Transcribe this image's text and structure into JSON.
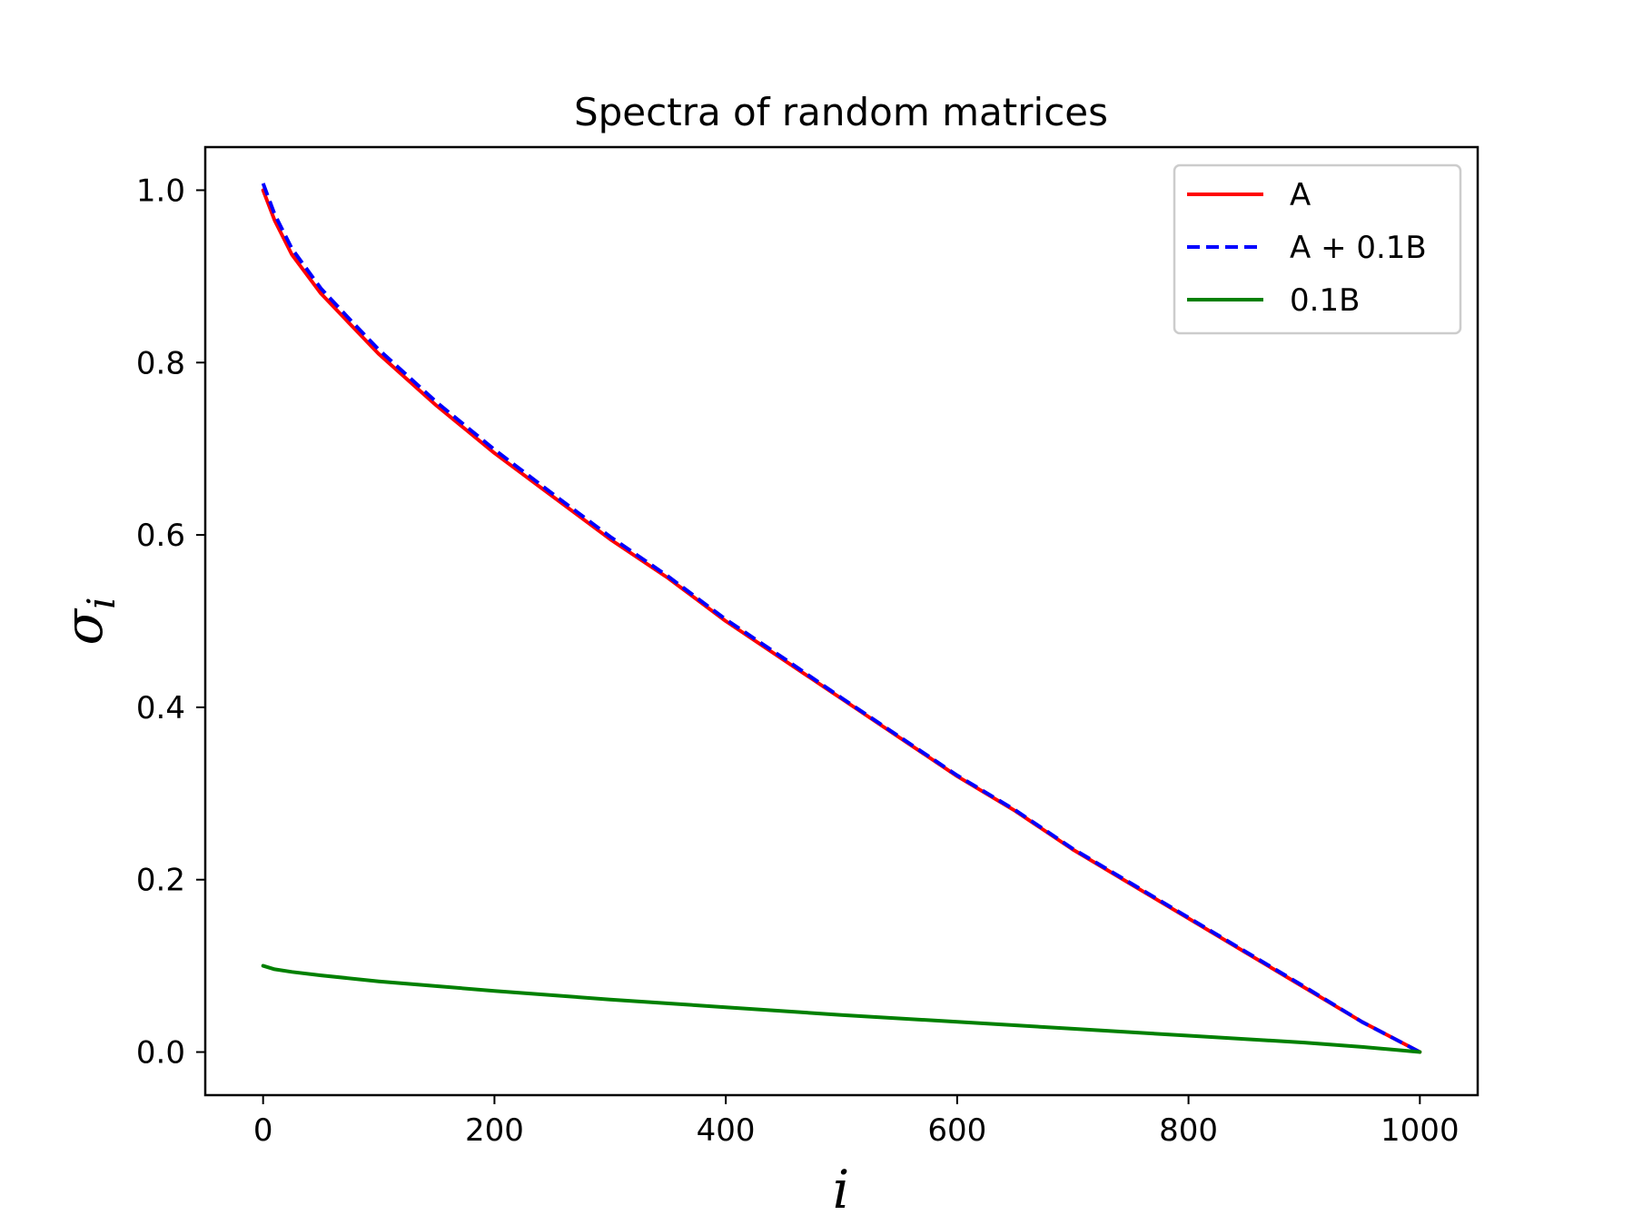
{
  "chart_data": {
    "type": "line",
    "title": "Spectra of random matrices",
    "xlabel": "i",
    "ylabel": "σ",
    "ylabel_subscript": "i",
    "xlim": [
      -50,
      1050
    ],
    "ylim": [
      -0.05,
      1.05
    ],
    "x_ticks": [
      0,
      200,
      400,
      600,
      800,
      1000
    ],
    "x_tick_labels": [
      "0",
      "200",
      "400",
      "600",
      "800",
      "1000"
    ],
    "y_ticks": [
      0.0,
      0.2,
      0.4,
      0.6,
      0.8,
      1.0
    ],
    "y_tick_labels": [
      "0.0",
      "0.2",
      "0.4",
      "0.6",
      "0.8",
      "1.0"
    ],
    "grid": false,
    "legend_position": "top-right",
    "series": [
      {
        "name": "A",
        "color": "#ff0000",
        "style": "solid",
        "x": [
          0,
          10,
          25,
          50,
          75,
          100,
          150,
          200,
          250,
          300,
          350,
          400,
          450,
          500,
          550,
          600,
          650,
          700,
          750,
          800,
          850,
          900,
          950,
          1000
        ],
        "y": [
          1.0,
          0.965,
          0.925,
          0.88,
          0.845,
          0.81,
          0.75,
          0.695,
          0.645,
          0.595,
          0.55,
          0.5,
          0.455,
          0.41,
          0.365,
          0.32,
          0.28,
          0.235,
          0.195,
          0.155,
          0.115,
          0.075,
          0.035,
          0.0
        ]
      },
      {
        "name": "A + 0.1B",
        "color": "#0000ff",
        "style": "dashed",
        "x": [
          0,
          10,
          25,
          50,
          75,
          100,
          150,
          200,
          250,
          300,
          350,
          400,
          450,
          500,
          550,
          600,
          650,
          700,
          750,
          800,
          850,
          900,
          950,
          1000
        ],
        "y": [
          1.008,
          0.972,
          0.932,
          0.886,
          0.85,
          0.815,
          0.754,
          0.699,
          0.648,
          0.598,
          0.552,
          0.502,
          0.457,
          0.411,
          0.366,
          0.321,
          0.281,
          0.236,
          0.196,
          0.156,
          0.116,
          0.076,
          0.035,
          0.0
        ]
      },
      {
        "name": "0.1B",
        "color": "#008000",
        "style": "solid",
        "x": [
          0,
          10,
          25,
          50,
          100,
          200,
          300,
          400,
          500,
          600,
          700,
          800,
          900,
          950,
          1000
        ],
        "y": [
          0.1,
          0.096,
          0.093,
          0.089,
          0.082,
          0.071,
          0.061,
          0.052,
          0.043,
          0.035,
          0.027,
          0.019,
          0.011,
          0.006,
          0.0
        ]
      }
    ]
  }
}
